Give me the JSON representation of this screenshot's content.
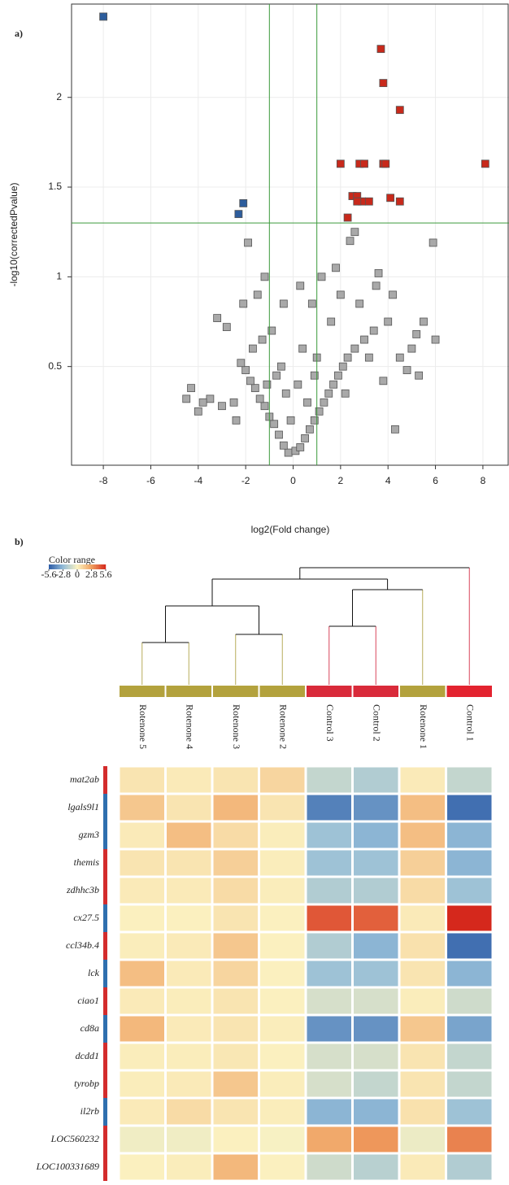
{
  "chart_data": [
    {
      "type": "scatter",
      "panel_label": "a)",
      "x_label": "log2(Fold change)",
      "y_label": "-log10(correctedPvalue)",
      "xlim": [
        -9.34,
        9.1
      ],
      "ylim": [
        -0.05,
        2.52
      ],
      "xticks": [
        -8,
        -6,
        -4,
        -2,
        0,
        2,
        4,
        6,
        8
      ],
      "yticks": [
        0.5,
        1,
        1.5,
        2
      ],
      "grid": true,
      "vlines": [
        -1,
        1
      ],
      "hlines": [
        1.3
      ],
      "threshold_color": "#3c9a3c",
      "series": [
        {
          "color": "#a9a9a9",
          "x": [
            -0.2,
            0.1,
            0.3,
            -0.4,
            0.5,
            -0.6,
            0.7,
            -0.8,
            0.9,
            -1,
            1.1,
            -1.2,
            1.3,
            -1.4,
            1.5,
            -1.6,
            1.7,
            -1.8,
            1.9,
            -2,
            2.1,
            -2.2,
            2.3,
            -2.5,
            2.6,
            -3,
            3,
            -3.5,
            3.4,
            -4,
            4,
            -4.5,
            4.5,
            -2.8,
            5,
            -3.2,
            5.3,
            -2.1,
            5.5,
            -1.5,
            6,
            -1.2,
            0.8,
            -0.9,
            1.2,
            -0.5,
            0.4,
            2.4,
            -1.9,
            2.6,
            5.9,
            3.5,
            4.2,
            3.8,
            4.3,
            -0.3,
            0.2,
            -0.7,
            0.6,
            1.6,
            -1.3,
            2,
            2.8,
            3.2,
            1,
            -1.1,
            -0.1,
            0.9,
            1.8,
            -1.7,
            2.2,
            -2.4,
            4.8,
            5.2,
            3.6,
            -0.4,
            0.3,
            -3.8,
            -4.3
          ],
          "values": [
            0.02,
            0.03,
            0.05,
            0.06,
            0.1,
            0.12,
            0.15,
            0.18,
            0.2,
            0.22,
            0.25,
            0.28,
            0.3,
            0.32,
            0.35,
            0.38,
            0.4,
            0.42,
            0.45,
            0.48,
            0.5,
            0.52,
            0.55,
            0.3,
            0.6,
            0.28,
            0.65,
            0.32,
            0.7,
            0.25,
            0.75,
            0.32,
            0.55,
            0.72,
            0.6,
            0.77,
            0.45,
            0.85,
            0.75,
            0.9,
            0.65,
            1.0,
            0.85,
            0.7,
            1.0,
            0.5,
            0.6,
            1.2,
            1.19,
            1.25,
            1.19,
            0.95,
            0.9,
            0.42,
            0.15,
            0.35,
            0.4,
            0.45,
            0.3,
            0.75,
            0.65,
            0.9,
            0.85,
            0.55,
            0.55,
            0.4,
            0.2,
            0.45,
            1.05,
            0.6,
            0.35,
            0.2,
            0.48,
            0.68,
            1.02,
            0.85,
            0.95,
            0.3,
            0.38
          ]
        },
        {
          "color": "#c8291b",
          "x": [
            3.7,
            3.8,
            4.5,
            2,
            2.8,
            3,
            3.8,
            3.9,
            8.1,
            2.5,
            2.7,
            2.9,
            2.7,
            3.2,
            4.1,
            4.5,
            2.3
          ],
          "values": [
            2.27,
            2.08,
            1.93,
            1.63,
            1.63,
            1.63,
            1.63,
            1.63,
            1.63,
            1.45,
            1.45,
            1.42,
            1.42,
            1.42,
            1.44,
            1.42,
            1.33
          ]
        },
        {
          "color": "#2d5d9c",
          "x": [
            -8,
            -2.1,
            -2.3
          ],
          "values": [
            2.45,
            1.41,
            1.35
          ]
        }
      ]
    },
    {
      "type": "heatmap",
      "panel_label": "b)",
      "x_labels": [
        "Rotenone 5",
        "Rotenone 4",
        "Rotenone 3",
        "Rotenone 2",
        "Control 3",
        "Control 2",
        "Rotenone 1",
        "Control 1"
      ],
      "column_colors": [
        "#b3a23d",
        "#b3a23d",
        "#b3a23d",
        "#b3a23d",
        "#d92a3a",
        "#d92a3a",
        "#b3a23d",
        "#e3232f"
      ],
      "y_labels": [
        "mat2ab",
        "lgals9l1",
        "gzm3",
        "themis",
        "zdhhc3b",
        "cx27.5",
        "ccl34b.4",
        "lck",
        "ciao1",
        "cd8a",
        "dcdd1",
        "tyrobp",
        "il2rb",
        "LOC560232",
        "LOC100331689"
      ],
      "row_colors": [
        "#d32c2c",
        "#2f6fae",
        "#2f6fae",
        "#d32c2c",
        "#d32c2c",
        "#2f6fae",
        "#d32c2c",
        "#2f6fae",
        "#d32c2c",
        "#2f6fae",
        "#d32c2c",
        "#d32c2c",
        "#2f6fae",
        "#d32c2c",
        "#d32c2c"
      ],
      "values": [
        [
          0.5,
          0.3,
          0.5,
          1.0,
          -1.5,
          -2,
          0.3,
          -1.5
        ],
        [
          1.5,
          0.5,
          2,
          0.5,
          -4.5,
          -4,
          1.8,
          -5
        ],
        [
          0.3,
          1.8,
          0.8,
          0.2,
          -2.5,
          -3,
          1.8,
          -3
        ],
        [
          0.5,
          0.5,
          1.2,
          0.2,
          -2.5,
          -2.5,
          1.2,
          -3
        ],
        [
          0.3,
          0.3,
          0.8,
          0.2,
          -2,
          -2,
          0.8,
          -2.5
        ],
        [
          0.1,
          0.1,
          0.5,
          0.1,
          4.5,
          4.3,
          0.3,
          5.6
        ],
        [
          0.2,
          0.3,
          1.5,
          0.1,
          -2,
          -3,
          0.6,
          -5
        ],
        [
          1.8,
          0.3,
          1,
          0.1,
          -2.5,
          -2.5,
          0.5,
          -3
        ],
        [
          0.3,
          0.2,
          0.5,
          0.1,
          -1,
          -1,
          0.2,
          -1.2
        ],
        [
          2,
          0.3,
          0.5,
          0.2,
          -4,
          -4,
          1.5,
          -3.5
        ],
        [
          0.2,
          0.2,
          0.4,
          0.1,
          -1,
          -1,
          0.5,
          -1.5
        ],
        [
          0.2,
          0.3,
          1.5,
          0.2,
          -1,
          -1.5,
          0.5,
          -1.5
        ],
        [
          0.3,
          0.8,
          0.5,
          0.2,
          -3,
          -3,
          0.6,
          -2.5
        ],
        [
          -0.3,
          -0.3,
          0.1,
          -0.1,
          2.5,
          3,
          -0.4,
          3.5
        ],
        [
          0.1,
          0.2,
          2,
          0.1,
          -1.2,
          -1.8,
          0.3,
          -2
        ]
      ],
      "colorbar": {
        "title": "Color range",
        "lim": [
          -5.6,
          5.6
        ],
        "ticks": [
          -5.6,
          -2.8,
          0,
          2.8,
          5.6
        ],
        "colors": [
          "#2b5aa6",
          "#93bcd8",
          "#fbf3c2",
          "#f0a060",
          "#d5281c"
        ]
      }
    }
  ]
}
